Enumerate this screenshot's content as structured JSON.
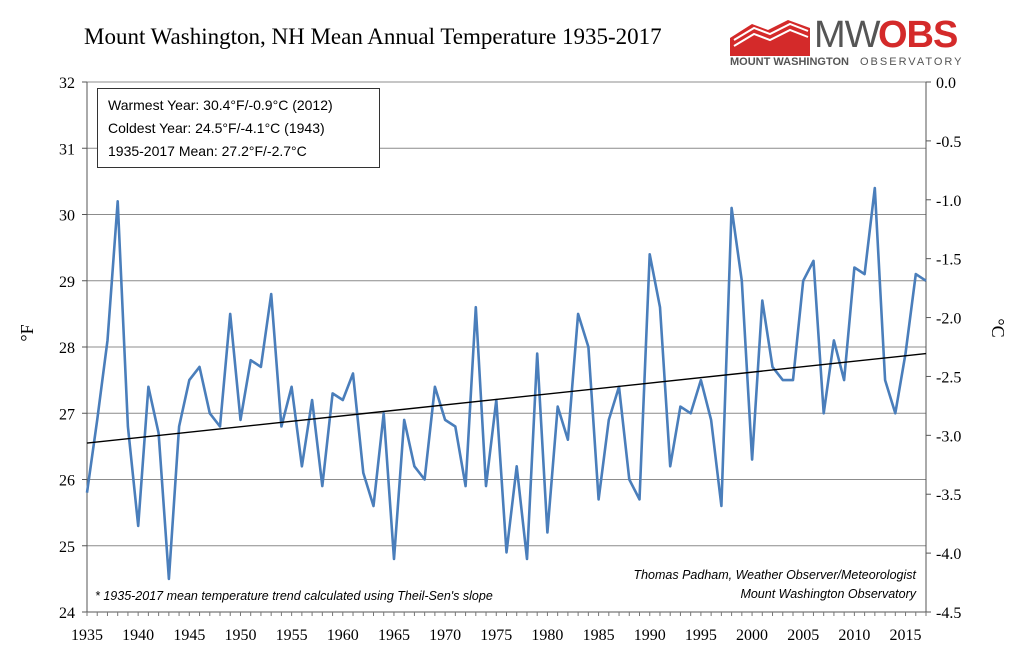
{
  "chart_data": {
    "type": "line",
    "title": "Mount Washington, NH Mean Annual Temperature 1935-2017",
    "ylabel": "°F",
    "y2label": "°C",
    "ylim": [
      24,
      32
    ],
    "y2lim": [
      -4.5,
      0.0
    ],
    "xlim": [
      1935,
      2017
    ],
    "grid": "horizontal",
    "y_ticks": [
      "24",
      "25",
      "26",
      "27",
      "28",
      "29",
      "30",
      "31",
      "32"
    ],
    "y2_ticks": [
      "-4.5",
      "-4.0",
      "-3.5",
      "-3.0",
      "-2.5",
      "-2.0",
      "-1.5",
      "-1.0",
      "-0.5",
      "0.0"
    ],
    "x_ticks": [
      "1935",
      "1940",
      "1945",
      "1950",
      "1955",
      "1960",
      "1965",
      "1970",
      "1975",
      "1980",
      "1985",
      "1990",
      "1995",
      "2000",
      "2005",
      "2010",
      "2015"
    ],
    "series": [
      {
        "name": "Mean Annual Temperature",
        "color": "#4a7ebb",
        "x": [
          1935,
          1936,
          1937,
          1938,
          1939,
          1940,
          1941,
          1942,
          1943,
          1944,
          1945,
          1946,
          1947,
          1948,
          1949,
          1950,
          1951,
          1952,
          1953,
          1954,
          1955,
          1956,
          1957,
          1958,
          1959,
          1960,
          1961,
          1962,
          1963,
          1964,
          1965,
          1966,
          1967,
          1968,
          1969,
          1970,
          1971,
          1972,
          1973,
          1974,
          1975,
          1976,
          1977,
          1978,
          1979,
          1980,
          1981,
          1982,
          1983,
          1984,
          1985,
          1986,
          1987,
          1988,
          1989,
          1990,
          1991,
          1992,
          1993,
          1994,
          1995,
          1996,
          1997,
          1998,
          1999,
          2000,
          2001,
          2002,
          2003,
          2004,
          2005,
          2006,
          2007,
          2008,
          2009,
          2010,
          2011,
          2012,
          2013,
          2014,
          2015,
          2016,
          2017
        ],
        "values": [
          25.8,
          26.9,
          28.1,
          30.2,
          26.8,
          25.3,
          27.4,
          26.7,
          24.5,
          26.8,
          27.5,
          27.7,
          27.0,
          26.8,
          28.5,
          26.9,
          27.8,
          27.7,
          28.8,
          26.8,
          27.4,
          26.2,
          27.2,
          25.9,
          27.3,
          27.2,
          27.6,
          26.1,
          25.6,
          27.0,
          24.8,
          26.9,
          26.2,
          26.0,
          27.4,
          26.9,
          26.8,
          25.9,
          28.6,
          25.9,
          27.2,
          24.9,
          26.2,
          24.8,
          27.9,
          25.2,
          27.1,
          26.6,
          28.5,
          28.0,
          25.7,
          26.9,
          27.4,
          26.0,
          25.7,
          29.4,
          28.6,
          26.2,
          27.1,
          27.0,
          27.5,
          26.9,
          25.6,
          30.1,
          29.0,
          26.3,
          28.7,
          27.7,
          27.5,
          27.5,
          29.0,
          29.3,
          27.0,
          28.1,
          27.5,
          29.2,
          29.1,
          30.4,
          27.5,
          27.0,
          27.9,
          29.1,
          29.0
        ]
      },
      {
        "name": "Theil-Sen trend",
        "color": "#000000",
        "x": [
          1935,
          2017
        ],
        "values": [
          26.55,
          27.9
        ]
      }
    ]
  },
  "stats": {
    "warmest": "Warmest Year: 30.4°F/-0.9°C (2012)",
    "coldest": "Coldest Year: 24.5°F/-4.1°C (1943)",
    "mean": "1935-2017 Mean: 27.2°F/-2.7°C"
  },
  "credit": {
    "line1": "Thomas Padham, Weather Observer/Meteorologist",
    "line2": "Mount Washington Observatory"
  },
  "footnote": "* 1935-2017 mean temperature trend calculated using Theil-Sen's slope",
  "logo": {
    "mw": "MW",
    "obs": "OBS",
    "sub1": "MOUNT WASHINGTON",
    "sub2": "OBSERVATORY"
  }
}
